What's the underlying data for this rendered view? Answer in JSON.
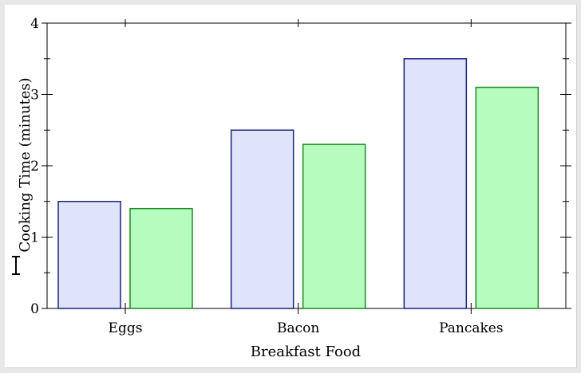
{
  "chart_data": {
    "type": "bar",
    "title": "",
    "xlabel": "Breakfast Food",
    "ylabel": "Cooking Time (minutes)",
    "categories": [
      "Eggs",
      "Bacon",
      "Pancakes"
    ],
    "series": [
      {
        "values": [
          1.5,
          2.5,
          3.5
        ],
        "fill": "#e0e4fb",
        "stroke": "#1a237e"
      },
      {
        "values": [
          1.4,
          2.3,
          3.1
        ],
        "fill": "#b6fcbf",
        "stroke": "#1e8a24"
      }
    ],
    "ylim": [
      0,
      4
    ],
    "yticks": [
      "0",
      "1",
      "2",
      "3",
      "4"
    ],
    "yminor": 0.5,
    "grid": false,
    "legend": "none"
  },
  "cursor": {
    "icon": "i-beam-cursor-icon"
  }
}
